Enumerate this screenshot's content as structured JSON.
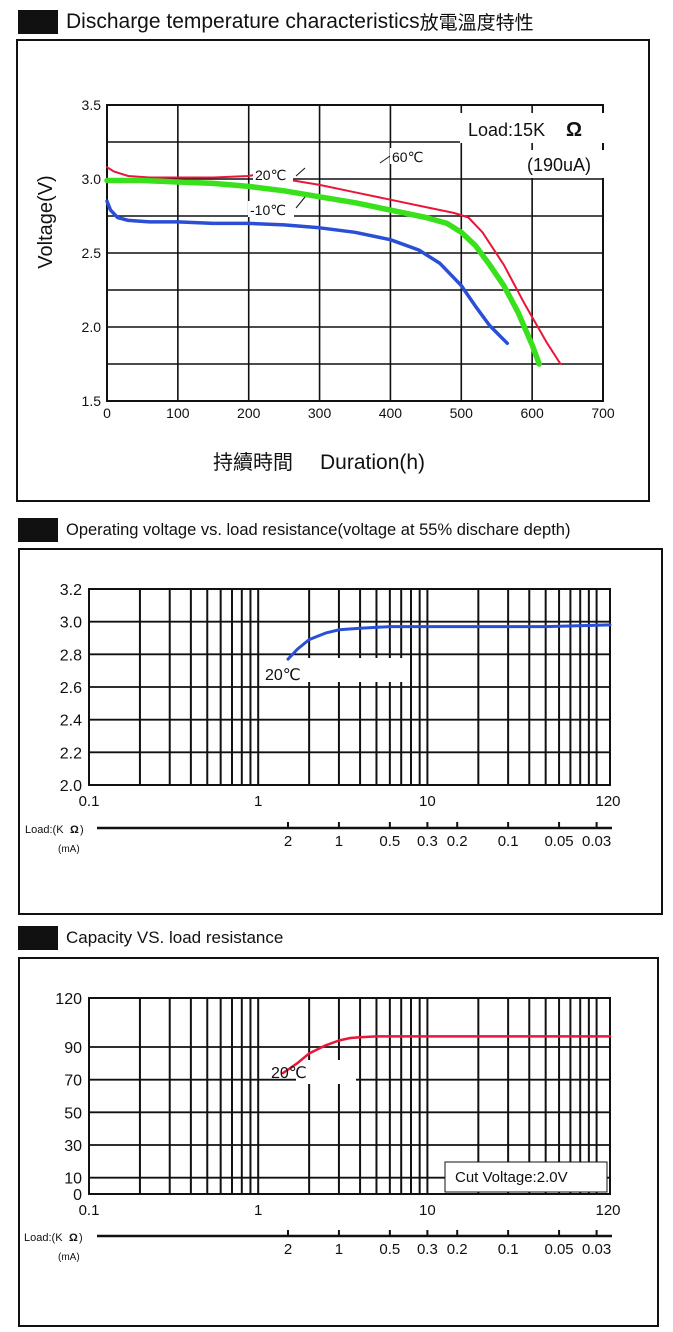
{
  "chart_data": [
    {
      "type": "line",
      "title": "Discharge temperature characteristics",
      "title_cjk": "放電溫度特性",
      "xlabel": "Duration(h)",
      "xlabel_cjk": "持續時間",
      "ylabel": "Voltage(V)",
      "xlim": [
        0,
        700
      ],
      "ylim": [
        1.5,
        3.5
      ],
      "x_ticks": [
        "0",
        "100",
        "200",
        "300",
        "400",
        "500",
        "600",
        "700"
      ],
      "y_ticks": [
        "1.5",
        "2.0",
        "2.5",
        "3.0",
        "3.5"
      ],
      "load_text": "Load:15K",
      "ohm": "Ω",
      "current_text": "(190uA)",
      "grid": true,
      "series": [
        {
          "name": "60℃",
          "color": "#e8173a",
          "x": [
            0,
            10,
            30,
            60,
            100,
            150,
            200,
            210,
            250,
            300,
            350,
            400,
            450,
            490,
            510,
            530,
            560,
            590,
            620,
            640
          ],
          "y": [
            3.08,
            3.05,
            3.02,
            3.01,
            3.01,
            3.01,
            3.02,
            3.03,
            3.0,
            2.96,
            2.91,
            2.86,
            2.81,
            2.77,
            2.74,
            2.64,
            2.42,
            2.15,
            1.9,
            1.75
          ]
        },
        {
          "name": "20℃",
          "color": "#39e11c",
          "x": [
            0,
            50,
            100,
            150,
            200,
            250,
            300,
            350,
            400,
            450,
            480,
            500,
            520,
            540,
            560,
            580,
            600,
            610
          ],
          "y": [
            2.99,
            2.99,
            2.98,
            2.97,
            2.95,
            2.92,
            2.88,
            2.84,
            2.79,
            2.74,
            2.7,
            2.64,
            2.55,
            2.42,
            2.28,
            2.1,
            1.88,
            1.75
          ]
        },
        {
          "name": "-10℃",
          "color": "#2a4fd6",
          "x": [
            0,
            5,
            15,
            30,
            60,
            100,
            150,
            200,
            250,
            300,
            350,
            400,
            440,
            470,
            500,
            520,
            540,
            565
          ],
          "y": [
            2.85,
            2.79,
            2.74,
            2.72,
            2.71,
            2.71,
            2.7,
            2.7,
            2.69,
            2.67,
            2.64,
            2.59,
            2.52,
            2.43,
            2.28,
            2.14,
            2.01,
            1.89
          ]
        }
      ]
    },
    {
      "type": "line",
      "title": "Operating voltage vs. load resistance(voltage at 55% dischare depth)",
      "x_scale": "log",
      "xlim": [
        0.1,
        120
      ],
      "ylim": [
        2.0,
        3.2
      ],
      "x_ticks": [
        "0.1",
        "1",
        "10",
        "120"
      ],
      "y_ticks": [
        "2.0",
        "2.2",
        "2.4",
        "2.6",
        "2.8",
        "3.0",
        "3.2"
      ],
      "load_label": "Load:(K",
      "load_ohm": "Ω",
      "load_close": ")",
      "ma_label": "(mA)",
      "ma_ticks": [
        {
          "value": 1.5,
          "label": "2"
        },
        {
          "value": 3,
          "label": "1"
        },
        {
          "value": 6,
          "label": "0.5"
        },
        {
          "value": 10,
          "label": "0.3"
        },
        {
          "value": 15,
          "label": "0.2"
        },
        {
          "value": 30,
          "label": "0.1"
        },
        {
          "value": 60,
          "label": "0.05"
        },
        {
          "value": 100,
          "label": "0.03"
        }
      ],
      "grid": true,
      "series": [
        {
          "name": "20℃",
          "color": "#2a4fd6",
          "x": [
            1.5,
            1.7,
            2.0,
            2.5,
            3.0,
            4,
            6,
            10,
            20,
            50,
            120
          ],
          "y": [
            2.77,
            2.83,
            2.89,
            2.93,
            2.95,
            2.96,
            2.97,
            2.97,
            2.97,
            2.97,
            2.98
          ]
        }
      ]
    },
    {
      "type": "line",
      "title": "Capacity VS. load resistance",
      "x_scale": "log",
      "xlim": [
        0.1,
        120
      ],
      "ylim": [
        0,
        120
      ],
      "x_ticks": [
        "0.1",
        "1",
        "10",
        "120"
      ],
      "y_ticks": [
        "0",
        "10",
        "30",
        "50",
        "70",
        "90",
        "120"
      ],
      "load_label": "Load:(K",
      "load_ohm": "Ω",
      "load_close": ")",
      "ma_label": "(mA)",
      "ma_ticks": [
        {
          "value": 1.5,
          "label": "2"
        },
        {
          "value": 3,
          "label": "1"
        },
        {
          "value": 6,
          "label": "0.5"
        },
        {
          "value": 10,
          "label": "0.3"
        },
        {
          "value": 15,
          "label": "0.2"
        },
        {
          "value": 30,
          "label": "0.1"
        },
        {
          "value": 60,
          "label": "0.05"
        },
        {
          "value": 100,
          "label": "0.03"
        }
      ],
      "annotation": "Cut Voltage:2.0V",
      "grid": true,
      "series": [
        {
          "name": "20℃",
          "color": "#e8173a",
          "x": [
            1.4,
            1.7,
            2.0,
            2.5,
            3.0,
            3.5,
            4,
            5,
            7,
            10,
            20,
            50,
            120
          ],
          "y": [
            74,
            80,
            86,
            91,
            94,
            95.5,
            96,
            96.5,
            96.5,
            96.5,
            96.5,
            96.5,
            96.5
          ]
        }
      ]
    }
  ]
}
